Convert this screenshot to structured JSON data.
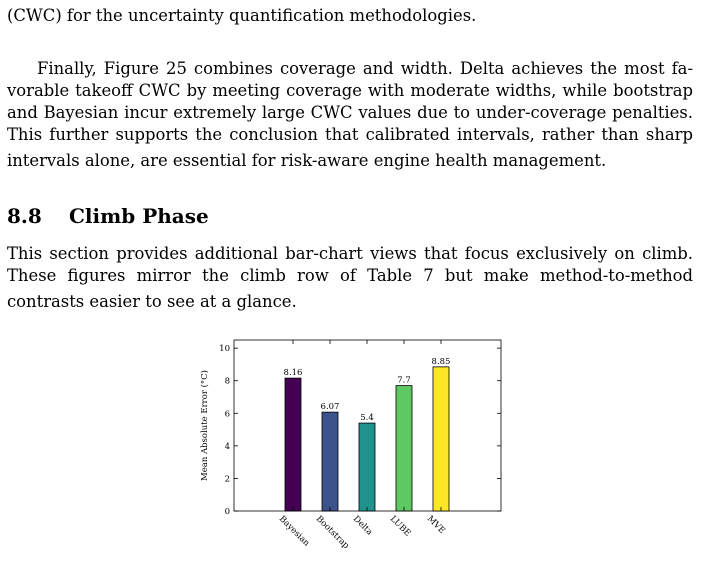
{
  "paragraphs": {
    "p0": [
      "(CWC) for the uncertainty quantification methodologies."
    ],
    "p1": [
      "Finally, Figure 25 combines coverage and width. Delta achieves the most fa-",
      "vorable takeoff CWC by meeting coverage with moderate widths, while bootstrap",
      "and Bayesian incur extremely large CWC values due to under-coverage penalties.",
      "This further supports the conclusion that calibrated intervals, rather than sharp",
      "intervals alone, are essential for risk-aware engine health management."
    ],
    "p2": [
      "This section provides additional bar-chart views that focus exclusively on climb.",
      "These figures mirror the climb row of Table 7 but make method-to-method",
      "contrasts easier to see at a glance."
    ]
  },
  "section": {
    "number": "8.8",
    "title": "Climb Phase"
  },
  "chart_data": {
    "type": "bar",
    "categories": [
      "Bayesian",
      "Bootstrap",
      "Delta",
      "LUBE",
      "MVE"
    ],
    "values": [
      8.16,
      6.07,
      5.4,
      7.7,
      8.85
    ],
    "value_labels": [
      "8.16",
      "6.07",
      "5.4",
      "7.7",
      "8.85"
    ],
    "ylabel": "Mean Absolute Error (°C)",
    "xlabel": "",
    "ylim": [
      0,
      10.5
    ],
    "yticks": [
      0,
      2,
      4,
      6,
      8,
      10
    ],
    "ytick_labels": [
      "0",
      "2",
      "4",
      "6",
      "8",
      "10"
    ],
    "colors": [
      "#440154",
      "#3b528b",
      "#21918c",
      "#5ec962",
      "#fde725"
    ],
    "grid": false,
    "legend": "none"
  }
}
